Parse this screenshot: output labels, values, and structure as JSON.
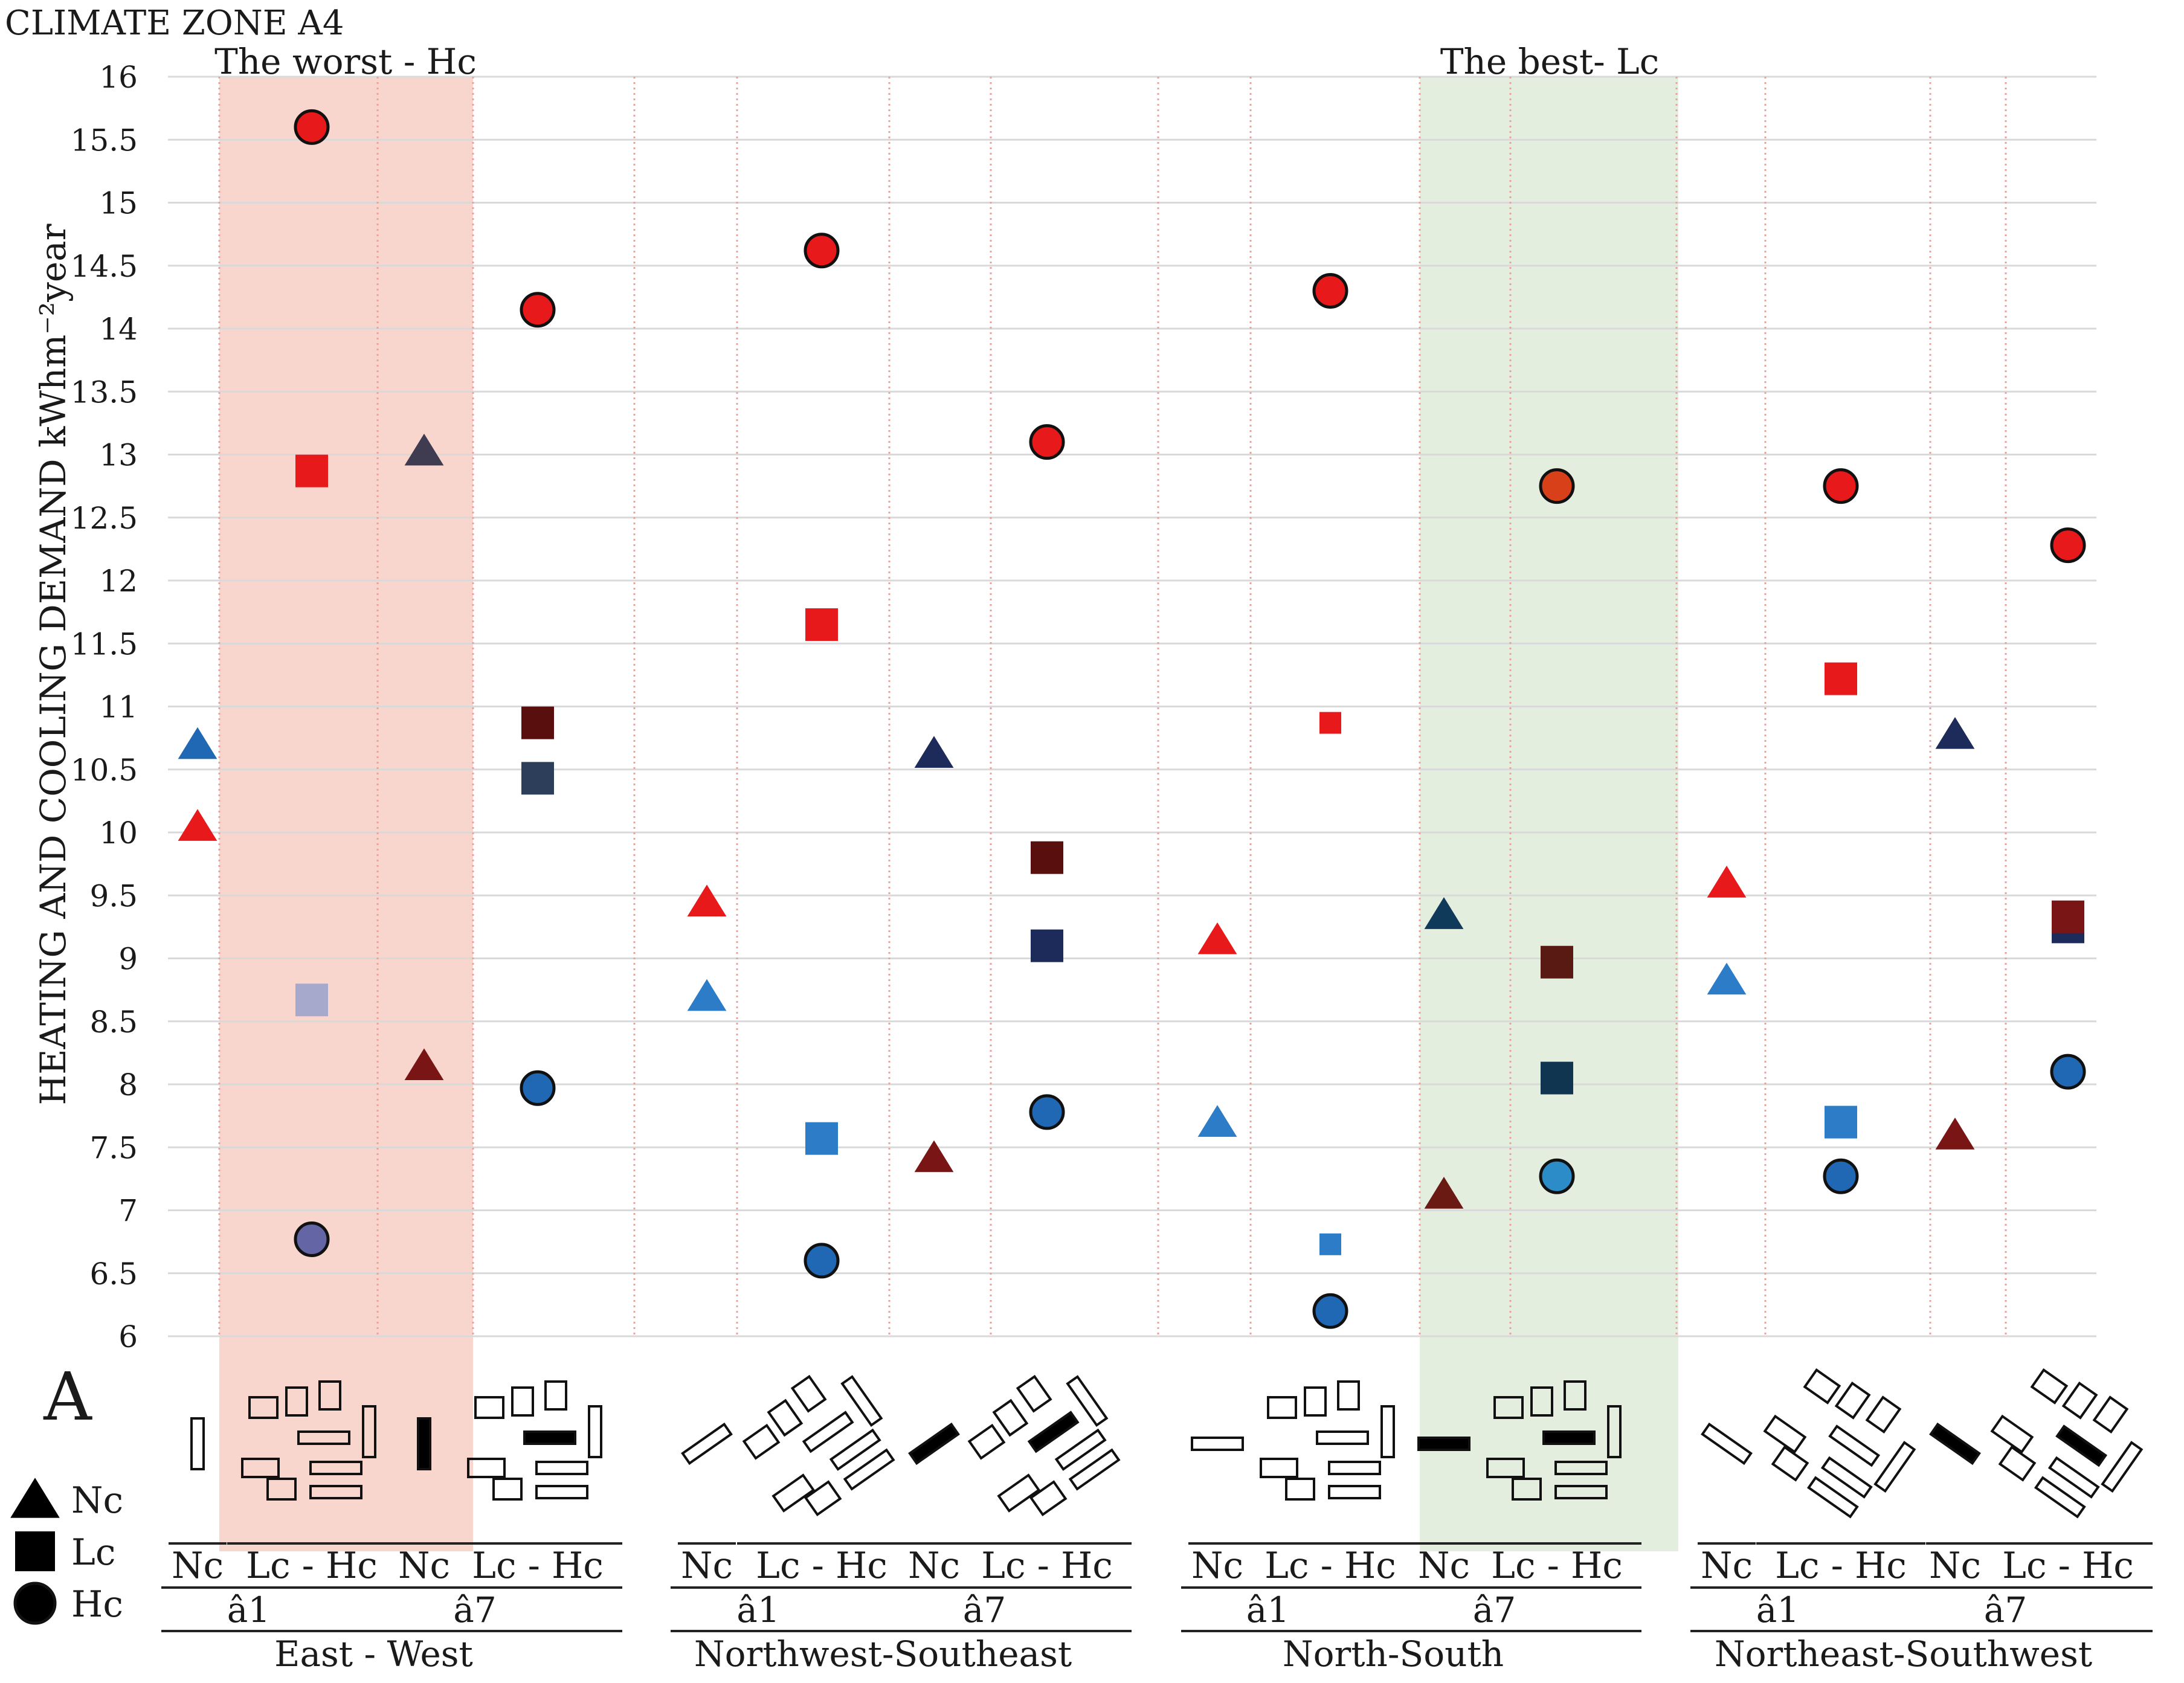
{
  "chart_data": {
    "type": "scatter",
    "title": "CLIMATE ZONE A4",
    "ylabel": "HEATING AND COOLING DEMAND kWhm⁻²year",
    "ylim": [
      6,
      16
    ],
    "yticks": [
      "6",
      "6.5",
      "7",
      "7.5",
      "8",
      "8.5",
      "9",
      "9.5",
      "10",
      "10.5",
      "11",
      "11.5",
      "12",
      "12.5",
      "13",
      "13.5",
      "14",
      "14.5",
      "15",
      "15.5",
      "16"
    ],
    "panel_letter": "A",
    "legend": [
      {
        "marker": "triangle",
        "label": "Nc"
      },
      {
        "marker": "square",
        "label": "Lc"
      },
      {
        "marker": "circle",
        "label": "Hc"
      }
    ],
    "highlights": [
      {
        "label": "The worst - Hc",
        "color": "#f9d6cd",
        "from_col": 1,
        "to_col": 2
      },
      {
        "label": "The best- Lc",
        "color": "#e4eedf",
        "from_col": 11,
        "to_col": 11
      }
    ],
    "groups": [
      {
        "orientation": "East - West",
        "subgroups": [
          {
            "label": "â1",
            "columns": [
              {
                "label": "Nc"
              },
              {
                "label": "Lc - Hc"
              }
            ]
          },
          {
            "label": "â7",
            "columns": [
              {
                "label": "Nc"
              },
              {
                "label": "Lc - Hc"
              }
            ]
          }
        ]
      },
      {
        "orientation": "Northwest-Southeast",
        "subgroups": [
          {
            "label": "â1",
            "columns": [
              {
                "label": "Nc"
              },
              {
                "label": "Lc - Hc"
              }
            ]
          },
          {
            "label": "â7",
            "columns": [
              {
                "label": "Nc"
              },
              {
                "label": "Lc - Hc"
              }
            ]
          }
        ]
      },
      {
        "orientation": "North-South",
        "subgroups": [
          {
            "label": "â1",
            "columns": [
              {
                "label": "Nc"
              },
              {
                "label": "Lc - Hc"
              }
            ]
          },
          {
            "label": "â7",
            "columns": [
              {
                "label": "Nc"
              },
              {
                "label": "Lc - Hc"
              }
            ]
          }
        ]
      },
      {
        "orientation": "Northeast-Southwest",
        "subgroups": [
          {
            "label": "â1",
            "columns": [
              {
                "label": "Nc"
              },
              {
                "label": "Lc - Hc"
              }
            ]
          },
          {
            "label": "â7",
            "columns": [
              {
                "label": "Nc"
              },
              {
                "label": "Lc - Hc"
              }
            ]
          }
        ]
      }
    ],
    "points": [
      {
        "col": 0,
        "marker": "triangle",
        "value": 10.7,
        "color": "#2068b4"
      },
      {
        "col": 0,
        "marker": "triangle",
        "value": 10.05,
        "color": "#e8191b"
      },
      {
        "col": 1,
        "marker": "circle",
        "value": 15.6,
        "color": "#e8191b"
      },
      {
        "col": 1,
        "marker": "square",
        "value": 12.87,
        "color": "#e8191b"
      },
      {
        "col": 1,
        "marker": "square",
        "value": 8.67,
        "color": "#a6a8cc"
      },
      {
        "col": 1,
        "marker": "circle",
        "value": 6.77,
        "color": "#6465a4"
      },
      {
        "col": 2,
        "marker": "triangle",
        "value": 13.03,
        "color": "#3f3c52"
      },
      {
        "col": 2,
        "marker": "triangle",
        "value": 8.15,
        "color": "#7a1515"
      },
      {
        "col": 3,
        "marker": "circle",
        "value": 14.15,
        "color": "#e8191b"
      },
      {
        "col": 3,
        "marker": "square",
        "value": 10.87,
        "color": "#5a0f0f"
      },
      {
        "col": 3,
        "marker": "square",
        "value": 10.43,
        "color": "#2c3e5a"
      },
      {
        "col": 3,
        "marker": "circle",
        "value": 7.97,
        "color": "#2068b4"
      },
      {
        "col": 4,
        "marker": "triangle",
        "value": 9.45,
        "color": "#e8191b"
      },
      {
        "col": 4,
        "marker": "triangle",
        "value": 8.7,
        "color": "#2c7cc8"
      },
      {
        "col": 5,
        "marker": "circle",
        "value": 14.62,
        "color": "#e8191b"
      },
      {
        "col": 5,
        "marker": "square",
        "value": 11.65,
        "color": "#e8191b"
      },
      {
        "col": 5,
        "marker": "square",
        "value": 7.57,
        "color": "#2c7cc8"
      },
      {
        "col": 5,
        "marker": "circle",
        "value": 6.6,
        "color": "#2068b4"
      },
      {
        "col": 6,
        "marker": "triangle",
        "value": 10.63,
        "color": "#1c2b5a"
      },
      {
        "col": 6,
        "marker": "triangle",
        "value": 7.42,
        "color": "#7a1515"
      },
      {
        "col": 7,
        "marker": "circle",
        "value": 13.1,
        "color": "#e8191b"
      },
      {
        "col": 7,
        "marker": "square",
        "value": 9.8,
        "color": "#5a0f0f"
      },
      {
        "col": 7,
        "marker": "square",
        "value": 9.1,
        "color": "#1c2b5a"
      },
      {
        "col": 7,
        "marker": "circle",
        "value": 7.78,
        "color": "#2068b4"
      },
      {
        "col": 8,
        "marker": "triangle",
        "value": 9.15,
        "color": "#e8191b"
      },
      {
        "col": 8,
        "marker": "triangle",
        "value": 7.7,
        "color": "#2c7cc8"
      },
      {
        "col": 9,
        "marker": "circle",
        "value": 14.3,
        "color": "#e8191b"
      },
      {
        "col": 9,
        "marker": "square",
        "value": 10.87,
        "color": "#e8191b"
      },
      {
        "col": 9,
        "marker": "square",
        "value": 6.73,
        "color": "#2c7cc8"
      },
      {
        "col": 9,
        "marker": "circle",
        "value": 6.2,
        "color": "#2068b4"
      },
      {
        "col": 10,
        "marker": "triangle",
        "value": 9.35,
        "color": "#103a5a"
      },
      {
        "col": 10,
        "marker": "triangle",
        "value": 7.13,
        "color": "#6a1a12"
      },
      {
        "col": 11,
        "marker": "circle",
        "value": 12.75,
        "color": "#d8401a"
      },
      {
        "col": 11,
        "marker": "square",
        "value": 8.97,
        "color": "#5a1a14"
      },
      {
        "col": 11,
        "marker": "square",
        "value": 8.05,
        "color": "#0f3550"
      },
      {
        "col": 11,
        "marker": "circle",
        "value": 7.27,
        "color": "#2c8cc8"
      },
      {
        "col": 12,
        "marker": "triangle",
        "value": 9.6,
        "color": "#e8191b"
      },
      {
        "col": 12,
        "marker": "triangle",
        "value": 8.83,
        "color": "#2c7cc8"
      },
      {
        "col": 13,
        "marker": "circle",
        "value": 12.75,
        "color": "#e8191b"
      },
      {
        "col": 13,
        "marker": "square",
        "value": 11.22,
        "color": "#e8191b"
      },
      {
        "col": 13,
        "marker": "square",
        "value": 7.7,
        "color": "#2c7cc8"
      },
      {
        "col": 13,
        "marker": "circle",
        "value": 7.27,
        "color": "#2068b4"
      },
      {
        "col": 14,
        "marker": "triangle",
        "value": 10.78,
        "color": "#1c2b5a"
      },
      {
        "col": 14,
        "marker": "triangle",
        "value": 7.6,
        "color": "#7a1515"
      },
      {
        "col": 15,
        "marker": "circle",
        "value": 12.28,
        "color": "#e8191b"
      },
      {
        "col": 15,
        "marker": "square",
        "value": 9.25,
        "color": "#1c2b5a"
      },
      {
        "col": 15,
        "marker": "square",
        "value": 9.33,
        "color": "#7a1515"
      },
      {
        "col": 15,
        "marker": "circle",
        "value": 8.1,
        "color": "#2068b4"
      }
    ]
  }
}
